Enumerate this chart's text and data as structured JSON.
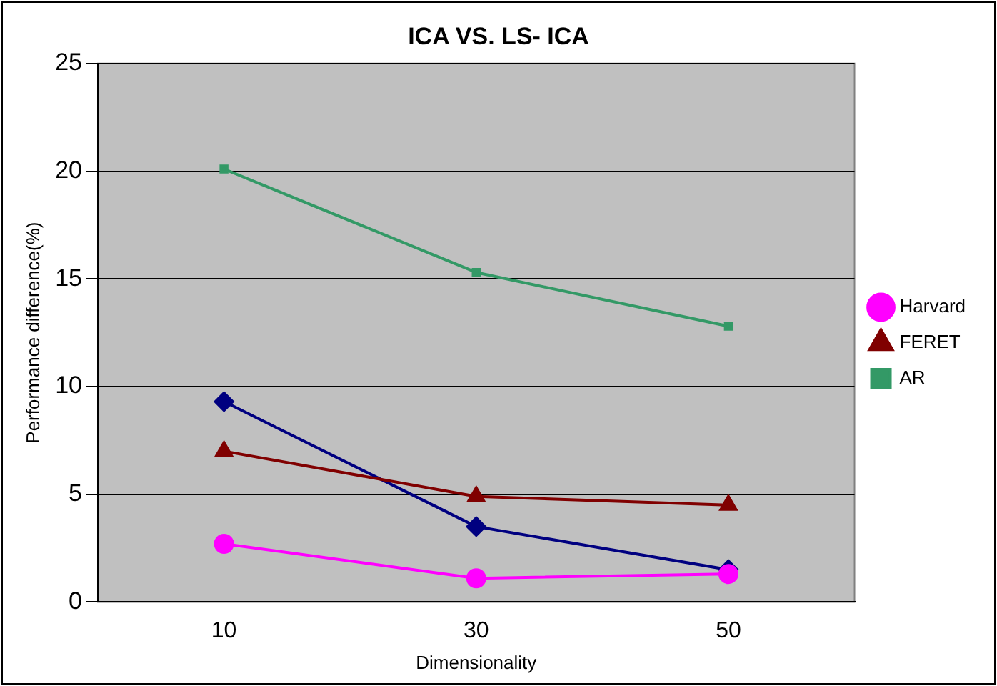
{
  "chart_data": {
    "type": "line",
    "title": "ICA VS. LS- ICA",
    "xlabel": "Dimensionality",
    "ylabel": "Performance difference(%)",
    "categories": [
      "10",
      "30",
      "50"
    ],
    "ylim": [
      0,
      25
    ],
    "yticks": [
      0,
      5,
      10,
      15,
      20,
      25
    ],
    "grid": "y",
    "legend": "right",
    "series": [
      {
        "color": "#000080",
        "marker": "diamond",
        "values": [
          9.3,
          3.5,
          1.5
        ]
      },
      {
        "name": "Harvard",
        "color": "#ff00ff",
        "marker": "circle",
        "values": [
          2.7,
          1.1,
          1.3
        ]
      },
      {
        "name": "FERET",
        "color": "#800000",
        "marker": "triangle",
        "values": [
          7.0,
          4.9,
          4.5
        ]
      },
      {
        "name": "AR",
        "color": "#339966",
        "marker": "square",
        "values": [
          20.1,
          15.3,
          12.8
        ]
      }
    ]
  }
}
